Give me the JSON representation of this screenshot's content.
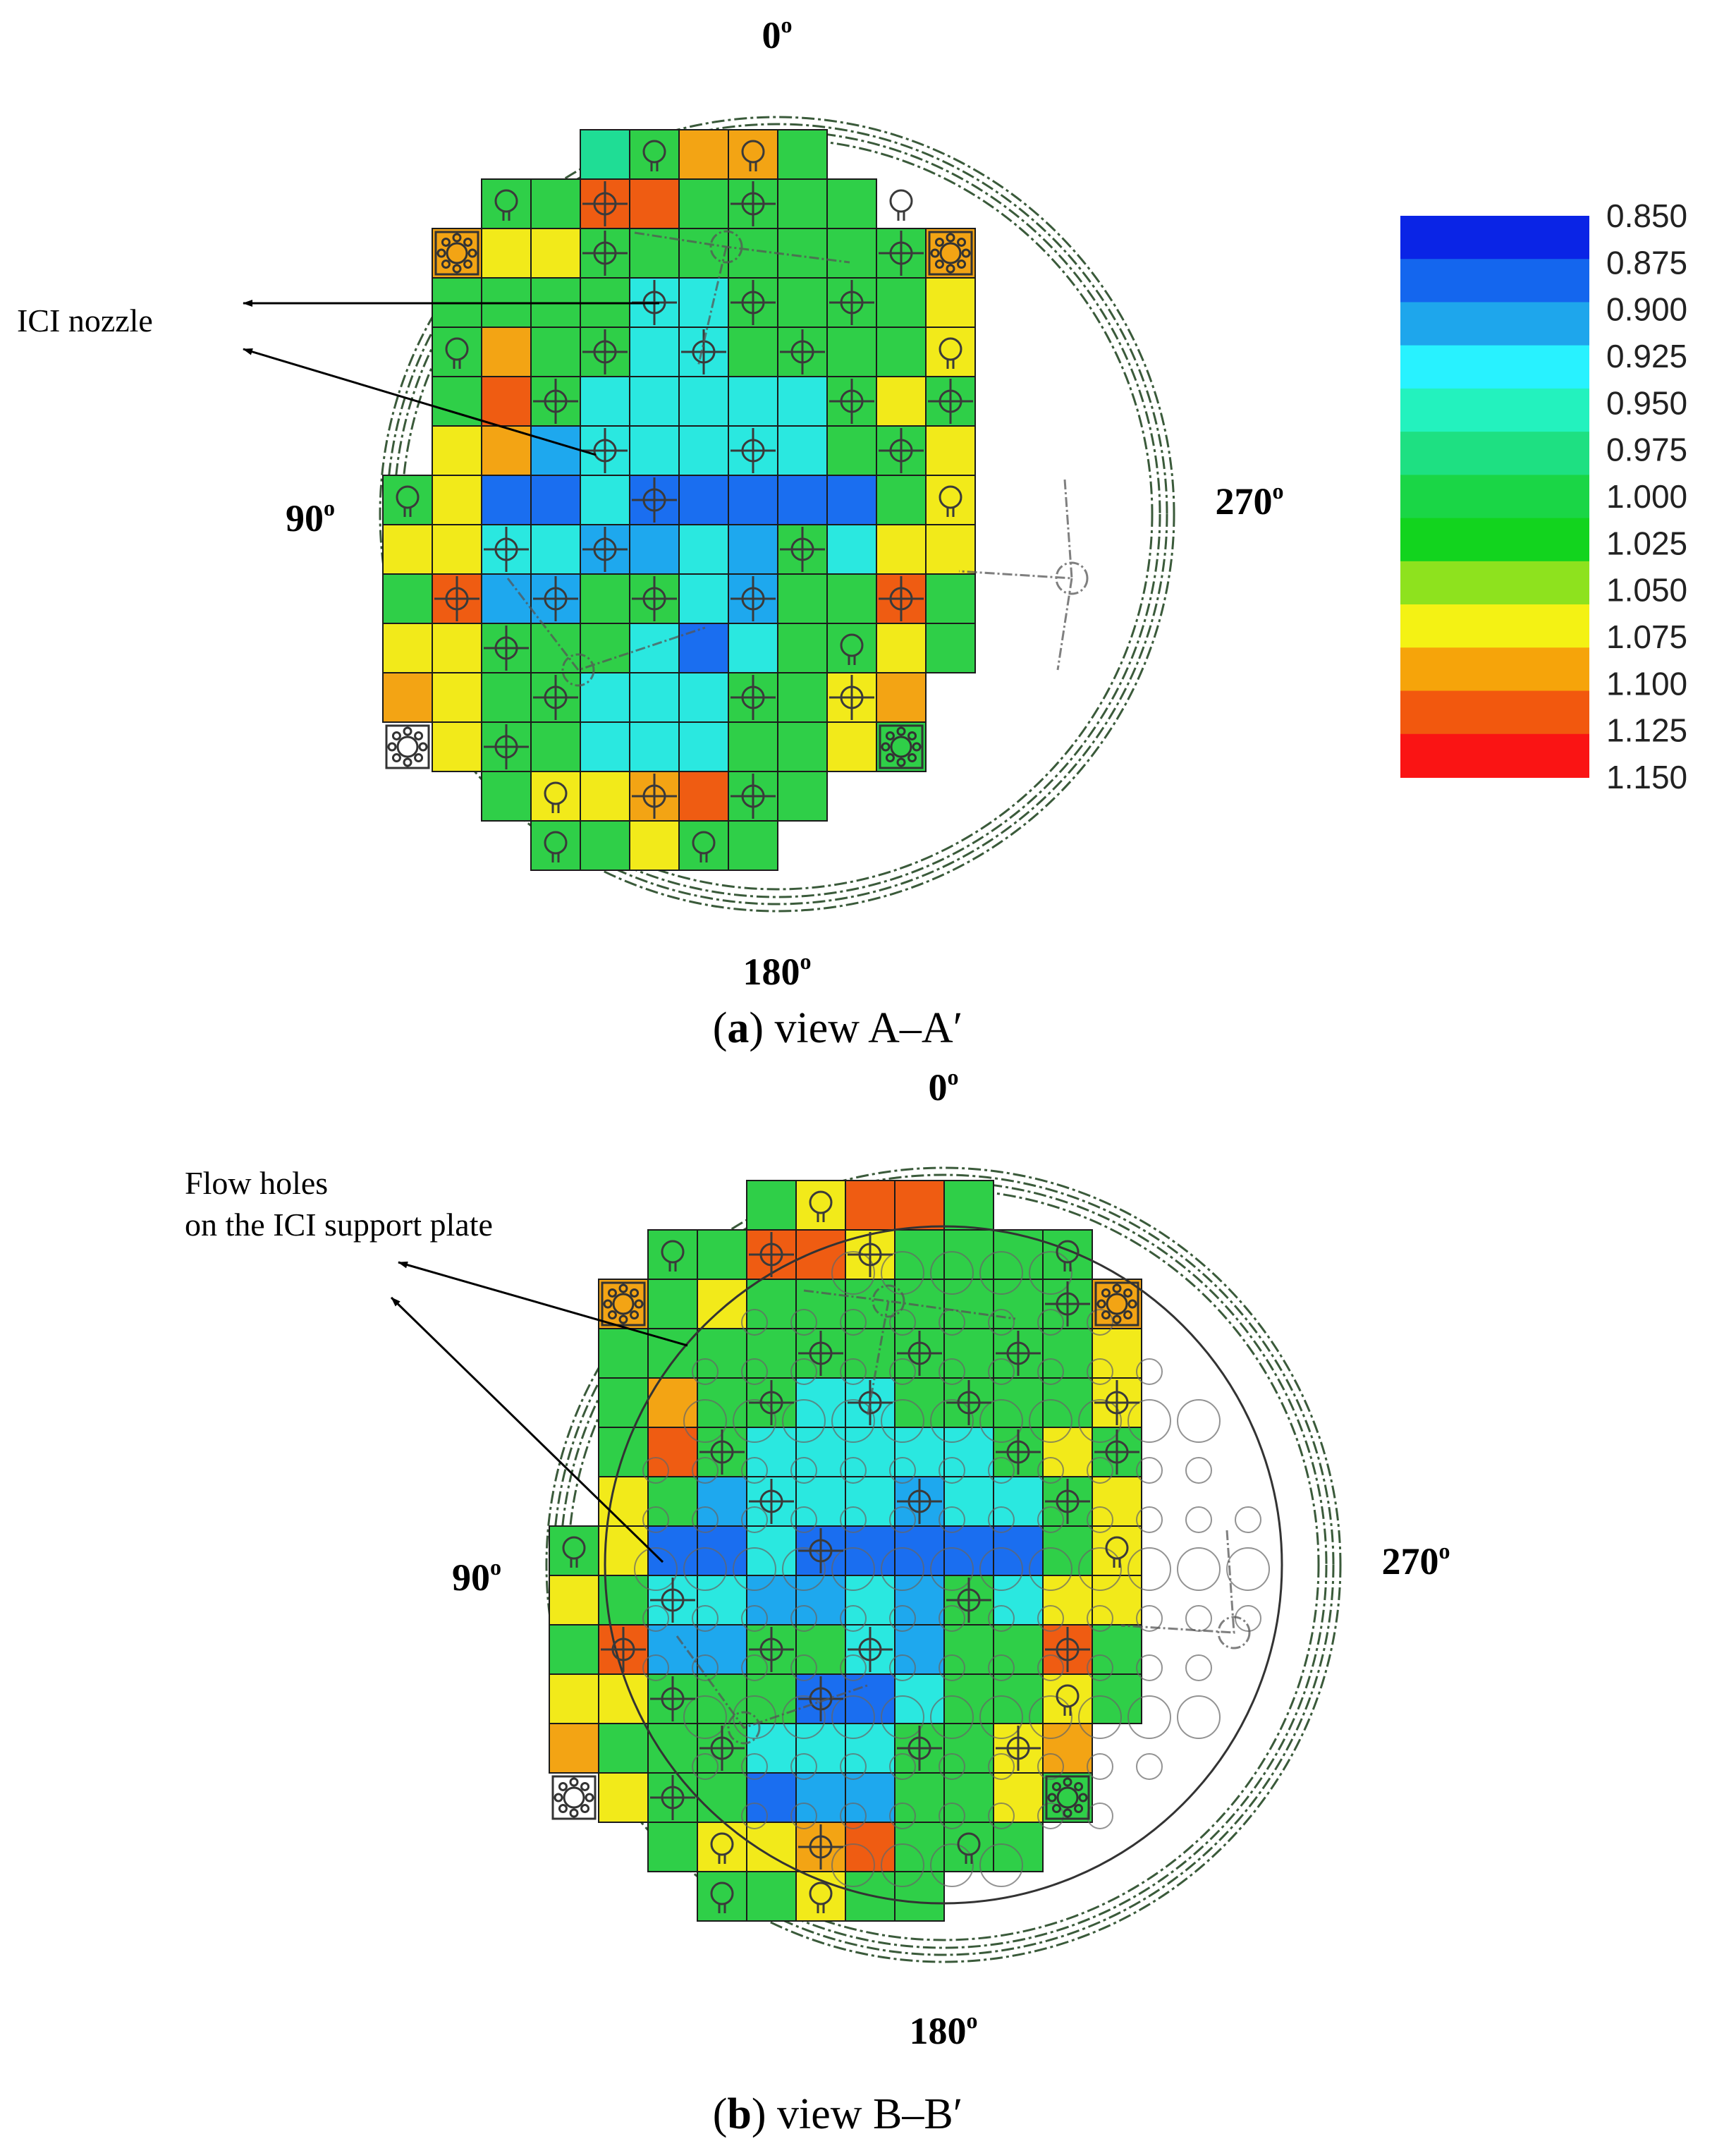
{
  "views": [
    {
      "id": "a",
      "angle_labels": {
        "top": "0",
        "bottom": "180",
        "left": "90",
        "right": "270"
      },
      "callout_label": "ICI nozzle",
      "caption_letter": "a",
      "caption_text": " view A–A′",
      "rows": [
        "...KGOOG...",
        ".GGRRGGGG..",
        "OYYGGGGGGGO",
        "GGGGTTGGGGY",
        "GOGGTTGGGGY",
        "GRGTTTTTGYG",
        "YOCTTTTTGGY",
        "GYBBTBBBBBGY",
        "YYTTCCTCGTYY",
        "GRCCGGTCGGRG",
        "YYGGGTBTGGYG",
        "OYGGTTTGGYO.",
        ".YGGTTTGGYG.",
        "..GYYORGG...",
        "...GGYGG...."
      ],
      "icons": [
        {
          "r": 0,
          "c": 4,
          "kind": "nozzle"
        },
        {
          "r": 0,
          "c": 6,
          "kind": "nozzle"
        },
        {
          "r": 1,
          "c": 1,
          "kind": "nozzle"
        },
        {
          "r": 1,
          "c": 3,
          "kind": "cross"
        },
        {
          "r": 1,
          "c": 6,
          "kind": "cross"
        },
        {
          "r": 1,
          "c": 9,
          "kind": "nozzle"
        },
        {
          "r": 2,
          "c": 0,
          "kind": "gear"
        },
        {
          "r": 2,
          "c": 3,
          "kind": "cross"
        },
        {
          "r": 2,
          "c": 9,
          "kind": "cross"
        },
        {
          "r": 2,
          "c": 10,
          "kind": "gear"
        },
        {
          "r": 3,
          "c": 4,
          "kind": "cross"
        },
        {
          "r": 3,
          "c": 6,
          "kind": "cross"
        },
        {
          "r": 3,
          "c": 8,
          "kind": "cross"
        },
        {
          "r": 4,
          "c": 0,
          "kind": "nozzle"
        },
        {
          "r": 4,
          "c": 3,
          "kind": "cross"
        },
        {
          "r": 4,
          "c": 5,
          "kind": "cross"
        },
        {
          "r": 4,
          "c": 7,
          "kind": "cross"
        },
        {
          "r": 4,
          "c": 10,
          "kind": "nozzle"
        },
        {
          "r": 5,
          "c": 2,
          "kind": "cross"
        },
        {
          "r": 5,
          "c": 8,
          "kind": "cross"
        },
        {
          "r": 5,
          "c": 10,
          "kind": "cross"
        },
        {
          "r": 6,
          "c": 3,
          "kind": "cross"
        },
        {
          "r": 6,
          "c": 6,
          "kind": "cross"
        },
        {
          "r": 6,
          "c": 9,
          "kind": "cross"
        },
        {
          "r": 7,
          "c": 0,
          "kind": "nozzle"
        },
        {
          "r": 7,
          "c": 5,
          "kind": "cross"
        },
        {
          "r": 7,
          "c": 11,
          "kind": "nozzle"
        },
        {
          "r": 8,
          "c": 2,
          "kind": "cross"
        },
        {
          "r": 8,
          "c": 4,
          "kind": "cross"
        },
        {
          "r": 8,
          "c": 8,
          "kind": "cross"
        },
        {
          "r": 9,
          "c": 1,
          "kind": "cross"
        },
        {
          "r": 9,
          "c": 3,
          "kind": "cross"
        },
        {
          "r": 9,
          "c": 5,
          "kind": "cross"
        },
        {
          "r": 9,
          "c": 7,
          "kind": "cross"
        },
        {
          "r": 9,
          "c": 10,
          "kind": "cross"
        },
        {
          "r": 10,
          "c": 2,
          "kind": "cross"
        },
        {
          "r": 10,
          "c": 9,
          "kind": "nozzle"
        },
        {
          "r": 11,
          "c": 3,
          "kind": "cross"
        },
        {
          "r": 11,
          "c": 7,
          "kind": "cross"
        },
        {
          "r": 11,
          "c": 9,
          "kind": "cross"
        },
        {
          "r": 12,
          "c": 0,
          "kind": "gear"
        },
        {
          "r": 12,
          "c": 2,
          "kind": "cross"
        },
        {
          "r": 12,
          "c": 10,
          "kind": "gear"
        },
        {
          "r": 13,
          "c": 3,
          "kind": "nozzle"
        },
        {
          "r": 13,
          "c": 5,
          "kind": "cross"
        },
        {
          "r": 13,
          "c": 7,
          "kind": "cross"
        },
        {
          "r": 14,
          "c": 3,
          "kind": "nozzle"
        },
        {
          "r": 14,
          "c": 6,
          "kind": "nozzle"
        }
      ]
    },
    {
      "id": "b",
      "angle_labels": {
        "top": "0",
        "bottom": "180",
        "left": "90",
        "right": "270"
      },
      "callout_label_line1": "Flow holes",
      "callout_label_line2": "on the ICI support plate",
      "caption_letter": "b",
      "caption_text": " view B–B′",
      "rows": [
        "...GYRRG...",
        ".GGRRYGGGG.",
        "OGYGGGGGGGO",
        "GGGGGGGGGGY",
        "GOGGTTGGGGY",
        "GRGTTTTTGYG",
        "YGCTTTCTTGY",
        "GYBBTBBBBBGY",
        "YGTTCCTCGTYY",
        "GRCCGGTCGGRG",
        "YYGGGBBTGGYG",
        "OGGGTTTGGYO.",
        ".YGGBCCGGYG.",
        "..GYYORGGG..",
        "...GGYGG...."
      ],
      "icons": [
        {
          "r": 0,
          "c": 4,
          "kind": "nozzle"
        },
        {
          "r": 1,
          "c": 1,
          "kind": "nozzle"
        },
        {
          "r": 1,
          "c": 3,
          "kind": "cross"
        },
        {
          "r": 1,
          "c": 5,
          "kind": "cross"
        },
        {
          "r": 1,
          "c": 9,
          "kind": "nozzle"
        },
        {
          "r": 2,
          "c": 0,
          "kind": "gear"
        },
        {
          "r": 2,
          "c": 9,
          "kind": "cross"
        },
        {
          "r": 2,
          "c": 10,
          "kind": "gear"
        },
        {
          "r": 3,
          "c": 4,
          "kind": "cross"
        },
        {
          "r": 3,
          "c": 6,
          "kind": "cross"
        },
        {
          "r": 3,
          "c": 8,
          "kind": "cross"
        },
        {
          "r": 4,
          "c": 3,
          "kind": "cross"
        },
        {
          "r": 4,
          "c": 5,
          "kind": "cross"
        },
        {
          "r": 4,
          "c": 7,
          "kind": "cross"
        },
        {
          "r": 4,
          "c": 10,
          "kind": "cross"
        },
        {
          "r": 5,
          "c": 2,
          "kind": "cross"
        },
        {
          "r": 5,
          "c": 8,
          "kind": "cross"
        },
        {
          "r": 5,
          "c": 10,
          "kind": "cross"
        },
        {
          "r": 6,
          "c": 3,
          "kind": "cross"
        },
        {
          "r": 6,
          "c": 6,
          "kind": "cross"
        },
        {
          "r": 6,
          "c": 9,
          "kind": "cross"
        },
        {
          "r": 7,
          "c": 0,
          "kind": "nozzle"
        },
        {
          "r": 7,
          "c": 5,
          "kind": "cross"
        },
        {
          "r": 7,
          "c": 11,
          "kind": "nozzle"
        },
        {
          "r": 8,
          "c": 2,
          "kind": "cross"
        },
        {
          "r": 8,
          "c": 8,
          "kind": "cross"
        },
        {
          "r": 9,
          "c": 1,
          "kind": "cross"
        },
        {
          "r": 9,
          "c": 4,
          "kind": "cross"
        },
        {
          "r": 9,
          "c": 6,
          "kind": "cross"
        },
        {
          "r": 9,
          "c": 10,
          "kind": "cross"
        },
        {
          "r": 10,
          "c": 2,
          "kind": "cross"
        },
        {
          "r": 10,
          "c": 5,
          "kind": "cross"
        },
        {
          "r": 10,
          "c": 10,
          "kind": "nozzle"
        },
        {
          "r": 11,
          "c": 3,
          "kind": "cross"
        },
        {
          "r": 11,
          "c": 7,
          "kind": "cross"
        },
        {
          "r": 11,
          "c": 9,
          "kind": "cross"
        },
        {
          "r": 12,
          "c": 0,
          "kind": "gear"
        },
        {
          "r": 12,
          "c": 2,
          "kind": "cross"
        },
        {
          "r": 12,
          "c": 10,
          "kind": "gear"
        },
        {
          "r": 13,
          "c": 3,
          "kind": "nozzle"
        },
        {
          "r": 13,
          "c": 5,
          "kind": "cross"
        },
        {
          "r": 13,
          "c": 8,
          "kind": "nozzle"
        },
        {
          "r": 14,
          "c": 3,
          "kind": "nozzle"
        },
        {
          "r": 14,
          "c": 5,
          "kind": "nozzle"
        }
      ]
    }
  ],
  "colorbar": {
    "values": [
      "0.850",
      "0.875",
      "0.900",
      "0.925",
      "0.950",
      "0.975",
      "1.000",
      "1.025",
      "1.050",
      "1.075",
      "1.100",
      "1.125",
      "1.150"
    ],
    "colors": [
      "#0a24e6",
      "#1466ee",
      "#1ea6ec",
      "#28f2ff",
      "#23f2be",
      "#1ee082",
      "#1ad646",
      "#12d41e",
      "#8ee21e",
      "#f4f214",
      "#f6a40a",
      "#f2580e",
      "#fa1414"
    ]
  },
  "cell_colors": {
    "B": "#1a6ef0",
    "C": "#1ea8ee",
    "T": "#2ae8e0",
    "G": "#2fcf48",
    "K": "#1fdd95",
    "Y": "#f2ea1a",
    "O": "#f3a414",
    "R": "#ef5c12"
  },
  "degree_symbol": "o"
}
